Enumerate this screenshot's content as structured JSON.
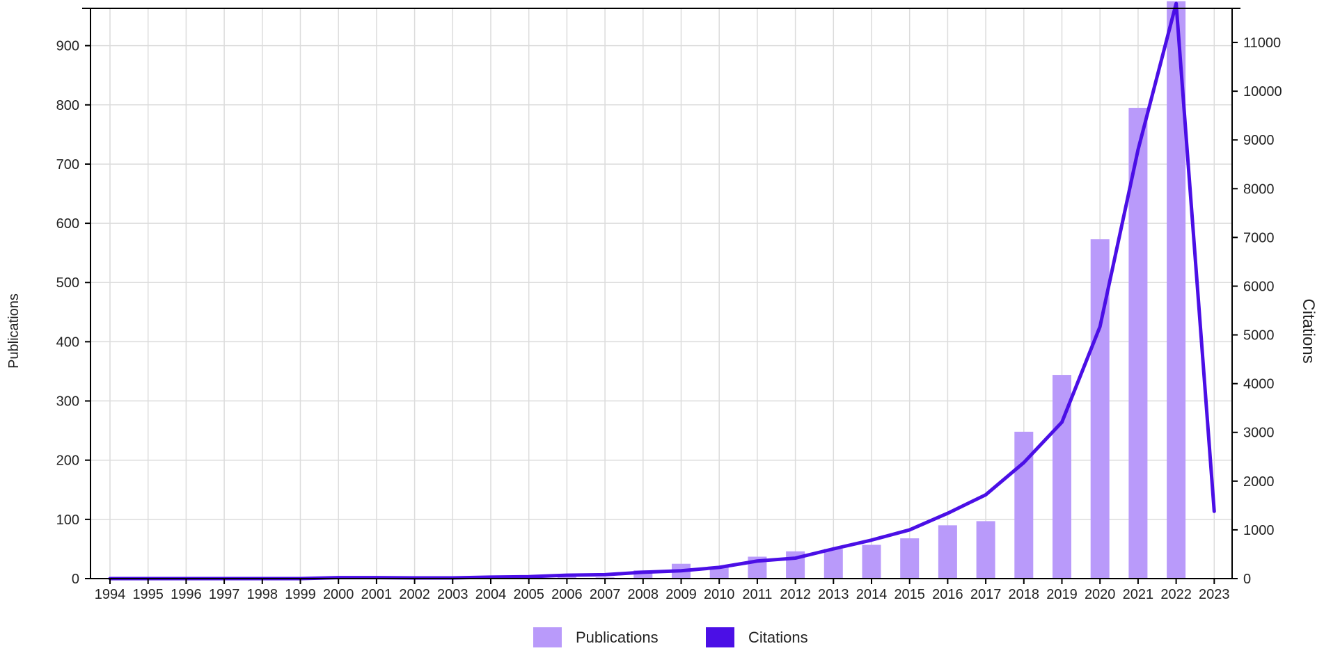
{
  "chart_data": {
    "type": "bar",
    "categories": [
      "1994",
      "1995",
      "1996",
      "1997",
      "1998",
      "1999",
      "2000",
      "2001",
      "2002",
      "2003",
      "2004",
      "2005",
      "2006",
      "2007",
      "2008",
      "2009",
      "2010",
      "2011",
      "2012",
      "2013",
      "2014",
      "2015",
      "2016",
      "2017",
      "2018",
      "2019",
      "2020",
      "2021",
      "2022",
      "2023"
    ],
    "series": [
      {
        "name": "Publications",
        "type": "bar",
        "axis": "left",
        "color": "#b99afa",
        "values": [
          1,
          0,
          0,
          0,
          0,
          0,
          1,
          0,
          0,
          0,
          2,
          1,
          3,
          2,
          14,
          25,
          20,
          37,
          46,
          50,
          57,
          68,
          90,
          97,
          248,
          344,
          573,
          795,
          975,
          0
        ]
      },
      {
        "name": "Citations",
        "type": "line",
        "axis": "right",
        "color": "#4b0fe6",
        "values": [
          0,
          0,
          0,
          0,
          0,
          0,
          20,
          20,
          15,
          15,
          30,
          40,
          70,
          80,
          130,
          160,
          230,
          360,
          420,
          610,
          790,
          1000,
          1340,
          1720,
          2380,
          3210,
          5170,
          8800,
          11800,
          1380
        ]
      }
    ],
    "y_left": {
      "label": "Publications",
      "ylim": [
        0,
        963
      ],
      "ticks": [
        0,
        100,
        200,
        300,
        400,
        500,
        600,
        700,
        800,
        900
      ]
    },
    "y_right": {
      "label": "Citations",
      "ylim": [
        0,
        11700
      ],
      "ticks": [
        0,
        1000,
        2000,
        3000,
        4000,
        5000,
        6000,
        7000,
        8000,
        9000,
        10000,
        11000
      ]
    },
    "title": "",
    "xlabel": "",
    "grid": true,
    "legend_position": "bottom-center"
  }
}
